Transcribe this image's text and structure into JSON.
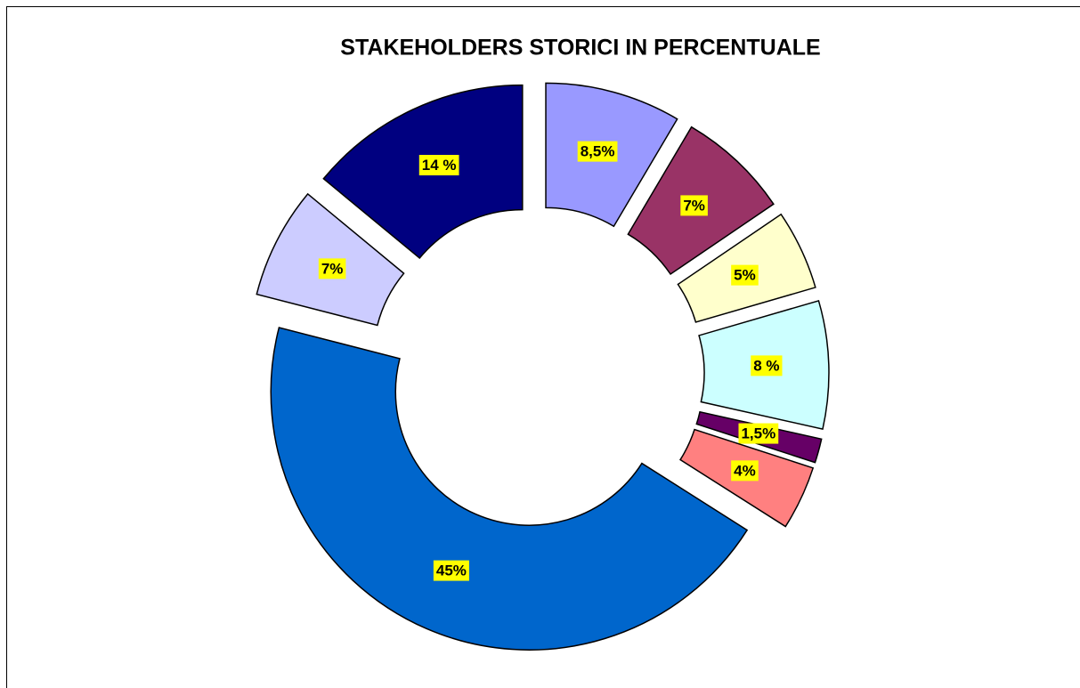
{
  "chart_data": {
    "type": "donut",
    "title": "STAKEHOLDERS STORICI IN PERCENTUALE",
    "values": [
      8.5,
      7,
      5,
      8,
      1.5,
      4,
      45,
      7,
      14
    ],
    "value_labels": [
      "8,5%",
      "7%",
      "5%",
      "8 %",
      "1,5%",
      "4%",
      "45%",
      "7%",
      "14 %"
    ],
    "colors": [
      "#9999ff",
      "#993366",
      "#ffffcc",
      "#ccffff",
      "#660066",
      "#ff8080",
      "#0066cc",
      "#ccccff",
      "#000080"
    ]
  }
}
